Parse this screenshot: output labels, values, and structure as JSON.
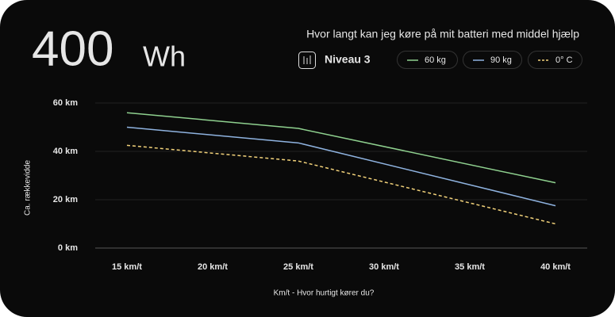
{
  "headline": {
    "value": 400,
    "unit": "Wh"
  },
  "level": "Niveau 3",
  "chart_data": {
    "type": "line",
    "title": "Hvor langt kan jeg køre på mit batteri med middel hjælp",
    "x_label": "Km/t - Hvor hurtigt kører du?",
    "y_label": "Ca. rækkevidde",
    "x": [
      15,
      25,
      40
    ],
    "series": [
      {
        "name": "60 kg",
        "color": "#8fd18f",
        "dash": false,
        "values": [
          56,
          49.5,
          27
        ]
      },
      {
        "name": "90 kg",
        "color": "#8fb3e0",
        "dash": false,
        "values": [
          50,
          43.5,
          17.5
        ]
      },
      {
        "name": "0° C",
        "color": "#f2d27a",
        "dash": true,
        "values": [
          42.5,
          36,
          10
        ]
      }
    ],
    "xlim": [
      13.15,
      41.85
    ],
    "xticks": [
      {
        "value": 15,
        "label": "15 km/t"
      },
      {
        "value": 20,
        "label": "20 km/t"
      },
      {
        "value": 25,
        "label": "25 km/t"
      },
      {
        "value": 30,
        "label": "30 km/t"
      },
      {
        "value": 35,
        "label": "35 km/t"
      },
      {
        "value": 40,
        "label": "40 km/t"
      }
    ],
    "ylim": [
      0,
      60
    ],
    "yticks": [
      {
        "value": 0,
        "label": "0 km"
      },
      {
        "value": 20,
        "label": "20 km"
      },
      {
        "value": 40,
        "label": "40 km"
      },
      {
        "value": 60,
        "label": "60 km"
      }
    ],
    "grid": true
  }
}
